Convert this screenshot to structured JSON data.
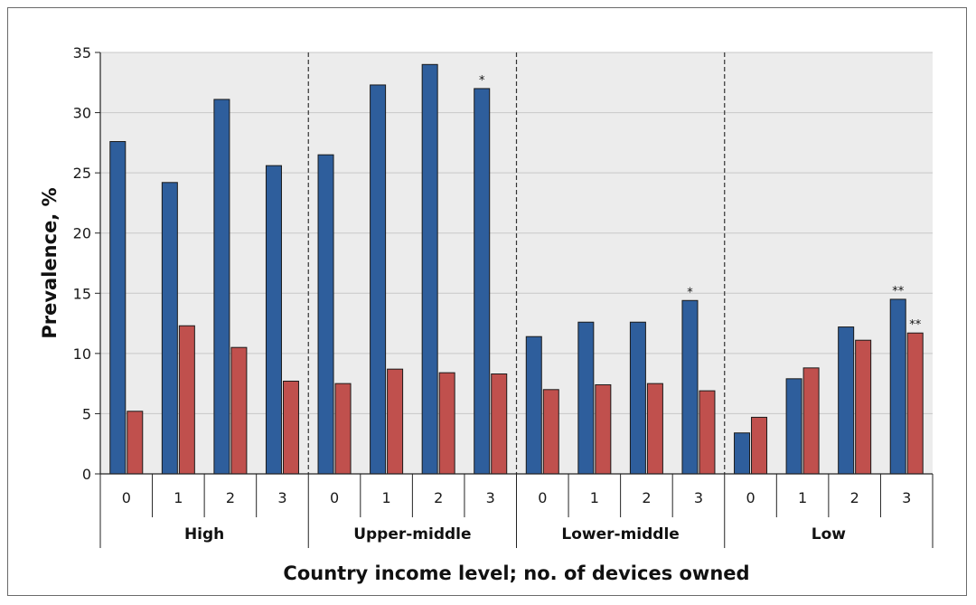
{
  "chart_data": {
    "type": "bar",
    "xlabel": "Country income level; no. of devices owned",
    "ylabel": "Prevalence, %",
    "ylim": [
      0,
      35
    ],
    "yticks": [
      0,
      5,
      10,
      15,
      20,
      25,
      30,
      35
    ],
    "grid": true,
    "legend": "none",
    "groups": [
      {
        "label": "High",
        "categories": [
          "0",
          "1",
          "2",
          "3"
        ]
      },
      {
        "label": "Upper-middle",
        "categories": [
          "0",
          "1",
          "2",
          "3"
        ]
      },
      {
        "label": "Lower-middle",
        "categories": [
          "0",
          "1",
          "2",
          "3"
        ]
      },
      {
        "label": "Low",
        "categories": [
          "0",
          "1",
          "2",
          "3"
        ]
      }
    ],
    "series": [
      {
        "color": "#2e5e9c",
        "values": [
          27.6,
          24.2,
          31.1,
          25.6,
          26.5,
          32.3,
          34.0,
          32.0,
          11.4,
          12.6,
          12.6,
          14.4,
          3.4,
          7.9,
          12.2,
          14.5
        ]
      },
      {
        "color": "#c0504d",
        "values": [
          5.2,
          12.3,
          10.5,
          7.7,
          7.5,
          8.7,
          8.4,
          8.3,
          7.0,
          7.4,
          7.5,
          6.9,
          4.7,
          8.8,
          11.1,
          11.7
        ]
      }
    ],
    "annotations": [
      {
        "series": 0,
        "index": 7,
        "text": "*"
      },
      {
        "series": 0,
        "index": 11,
        "text": "*"
      },
      {
        "series": 0,
        "index": 15,
        "text": "**"
      },
      {
        "series": 1,
        "index": 15,
        "text": "**"
      }
    ]
  },
  "colors": {
    "plot_background": "#ececec",
    "grid": "#c8c8c8",
    "axis": "#222222"
  }
}
